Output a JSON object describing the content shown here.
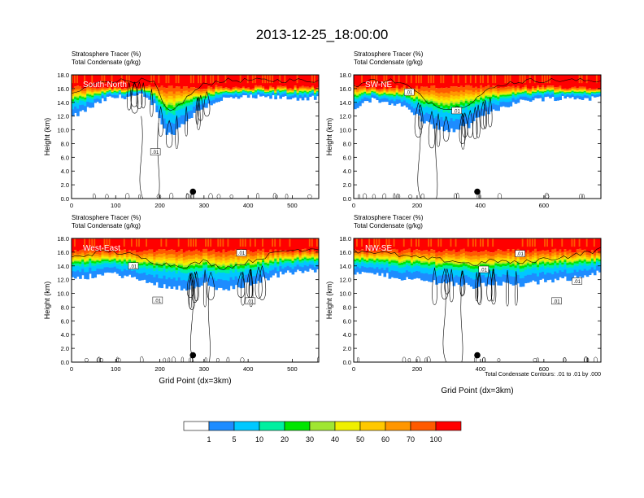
{
  "figure": {
    "title": "2013-12-25_18:00:00",
    "footnote": "Total Condensate Contours: .01 to .01 by .000"
  },
  "colorbar": {
    "colors": [
      "#ffffff",
      "#1e8cff",
      "#00c8ff",
      "#00f0a0",
      "#00e600",
      "#a0e632",
      "#f0f000",
      "#ffc800",
      "#ff9600",
      "#ff5a00",
      "#ff0000"
    ],
    "labels": [
      "1",
      "5",
      "10",
      "20",
      "30",
      "40",
      "50",
      "60",
      "70",
      "100"
    ]
  },
  "chart_data": [
    {
      "type": "heatmap",
      "panel": "South-North",
      "title_lines": [
        "Stratosphere Tracer   (%)",
        "Total Condensate   (g/kg)"
      ],
      "ylabel": "Height (km)",
      "xlabel": "",
      "xlim": [
        0,
        560
      ],
      "ylim": [
        0,
        18
      ],
      "xticks": [
        "0",
        "100",
        "200",
        "300",
        "400",
        "500"
      ],
      "yticks": [
        "0.0",
        "2.0",
        "4.0",
        "6.0",
        "8.0",
        "10.0",
        "12.0",
        "14.0",
        "16.0",
        "18.0"
      ],
      "tracer_lower_edge_km": [
        [
          0,
          11.8
        ],
        [
          40,
          13.2
        ],
        [
          80,
          14.6
        ],
        [
          120,
          14.9
        ],
        [
          160,
          15.0
        ],
        [
          190,
          13.5
        ],
        [
          210,
          10.0
        ],
        [
          225,
          9.2
        ],
        [
          245,
          10.5
        ],
        [
          270,
          12.0
        ],
        [
          300,
          13.4
        ],
        [
          340,
          14.5
        ],
        [
          400,
          14.8
        ],
        [
          480,
          14.7
        ],
        [
          560,
          14.6
        ]
      ],
      "contour_labels": [
        {
          "x": 190,
          "y": 6.8,
          "text": ".01"
        }
      ],
      "marker": {
        "x": 275,
        "y": 1.0
      }
    },
    {
      "type": "heatmap",
      "panel": "SW-NE",
      "title_lines": [
        "Stratosphere Tracer   (%)",
        "Total Condensate   (g/kg)"
      ],
      "ylabel": "Height (km)",
      "xlabel": "",
      "xlim": [
        0,
        780
      ],
      "ylim": [
        0,
        18
      ],
      "xticks": [
        "0",
        "200",
        "400",
        "600"
      ],
      "yticks": [
        "0.0",
        "2.0",
        "4.0",
        "6.0",
        "8.0",
        "10.0",
        "12.0",
        "14.0",
        "16.0",
        "18.0"
      ],
      "tracer_lower_edge_km": [
        [
          0,
          13.2
        ],
        [
          60,
          14.4
        ],
        [
          120,
          14.0
        ],
        [
          170,
          13.2
        ],
        [
          230,
          11.0
        ],
        [
          300,
          9.8
        ],
        [
          360,
          10.6
        ],
        [
          420,
          12.5
        ],
        [
          480,
          13.6
        ],
        [
          560,
          14.5
        ],
        [
          660,
          14.7
        ],
        [
          780,
          14.6
        ]
      ],
      "contour_labels": [
        {
          "x": 175,
          "y": 15.5,
          "text": ".01"
        },
        {
          "x": 325,
          "y": 12.8,
          "text": ".01"
        }
      ],
      "marker": {
        "x": 390,
        "y": 1.0
      }
    },
    {
      "type": "heatmap",
      "panel": "West-East",
      "title_lines": [
        "Stratosphere Tracer   (%)",
        "Total Condensate   (g/kg)"
      ],
      "ylabel": "Height (km)",
      "xlabel": "Grid Point (dx=3km)",
      "xlim": [
        0,
        560
      ],
      "ylim": [
        0,
        18
      ],
      "xticks": [
        "0",
        "100",
        "200",
        "300",
        "400",
        "500"
      ],
      "yticks": [
        "0.0",
        "2.0",
        "4.0",
        "6.0",
        "8.0",
        "10.0",
        "12.0",
        "14.0",
        "16.0",
        "18.0"
      ],
      "tracer_lower_edge_km": [
        [
          0,
          12.0
        ],
        [
          40,
          12.5
        ],
        [
          80,
          13.0
        ],
        [
          130,
          12.5
        ],
        [
          180,
          11.5
        ],
        [
          220,
          11.0
        ],
        [
          260,
          10.8
        ],
        [
          300,
          11.5
        ],
        [
          340,
          10.5
        ],
        [
          380,
          11.0
        ],
        [
          420,
          11.8
        ],
        [
          480,
          13.0
        ],
        [
          560,
          13.4
        ]
      ],
      "contour_labels": [
        {
          "x": 140,
          "y": 14.0,
          "text": ".01"
        },
        {
          "x": 385,
          "y": 15.9,
          "text": ".01"
        },
        {
          "x": 195,
          "y": 9.0,
          "text": ".01"
        },
        {
          "x": 405,
          "y": 8.9,
          "text": ".01"
        }
      ],
      "marker": {
        "x": 275,
        "y": 1.0
      }
    },
    {
      "type": "heatmap",
      "panel": "NW-SE",
      "title_lines": [
        "Stratosphere Tracer   (%)",
        "Total Condensate   (g/kg)"
      ],
      "ylabel": "Height (km)",
      "xlabel": "Grid Point (dx=3km)",
      "xlim": [
        0,
        780
      ],
      "ylim": [
        0,
        18
      ],
      "xticks": [
        "0",
        "200",
        "400",
        "600"
      ],
      "yticks": [
        "0.0",
        "2.0",
        "4.0",
        "6.0",
        "8.0",
        "10.0",
        "12.0",
        "14.0",
        "16.0",
        "18.0"
      ],
      "tracer_lower_edge_km": [
        [
          0,
          13.0
        ],
        [
          80,
          12.8
        ],
        [
          160,
          12.2
        ],
        [
          240,
          11.8
        ],
        [
          320,
          11.5
        ],
        [
          380,
          11.0
        ],
        [
          440,
          11.6
        ],
        [
          520,
          11.2
        ],
        [
          600,
          11.8
        ],
        [
          680,
          12.2
        ],
        [
          780,
          13.2
        ]
      ],
      "contour_labels": [
        {
          "x": 410,
          "y": 13.5,
          "text": ".01"
        },
        {
          "x": 525,
          "y": 15.8,
          "text": ".01"
        },
        {
          "x": 705,
          "y": 11.8,
          "text": ".01"
        },
        {
          "x": 640,
          "y": 8.9,
          "text": ".01"
        }
      ],
      "marker": {
        "x": 390,
        "y": 1.0
      }
    }
  ]
}
